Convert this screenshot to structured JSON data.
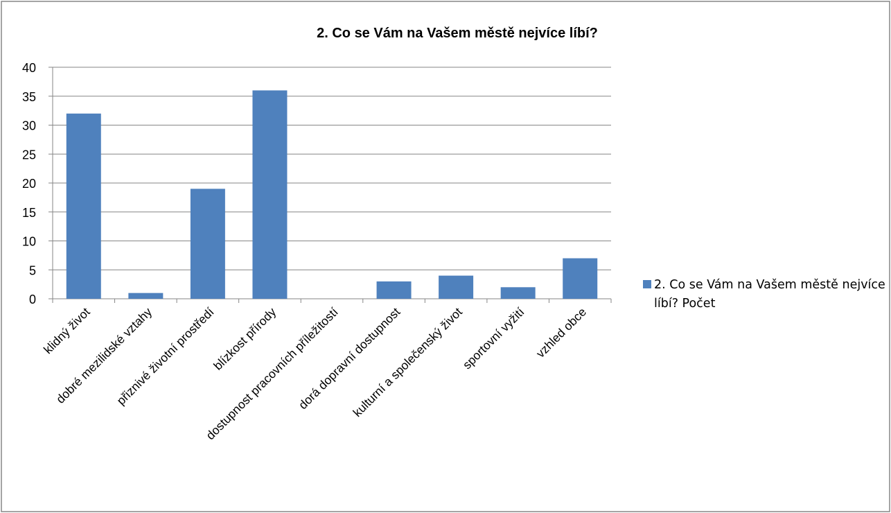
{
  "chart_data": {
    "type": "bar",
    "title": "2. Co se Vám na Vašem městě nejvíce líbí?",
    "categories": [
      "klidný život",
      "dobré mezilidské vztahy",
      "přiznivé životní prostředí",
      "blízkost přírody",
      "dostupnost pracovních příležitostí",
      "dorá dopravní dostupnost",
      "kulturní a společenský život",
      "sportovní vyžití",
      "vzhled obce"
    ],
    "series": [
      {
        "name": "2. Co se Vám na Vašem městě nejvíce líbí? Počet",
        "color": "#4f81bd",
        "values": [
          32,
          1,
          19,
          36,
          0,
          3,
          4,
          2,
          7
        ]
      }
    ],
    "ylim": [
      0,
      40
    ],
    "yticks": [
      0,
      5,
      10,
      15,
      20,
      25,
      30,
      35,
      40
    ],
    "grid": true,
    "legend": "right"
  }
}
